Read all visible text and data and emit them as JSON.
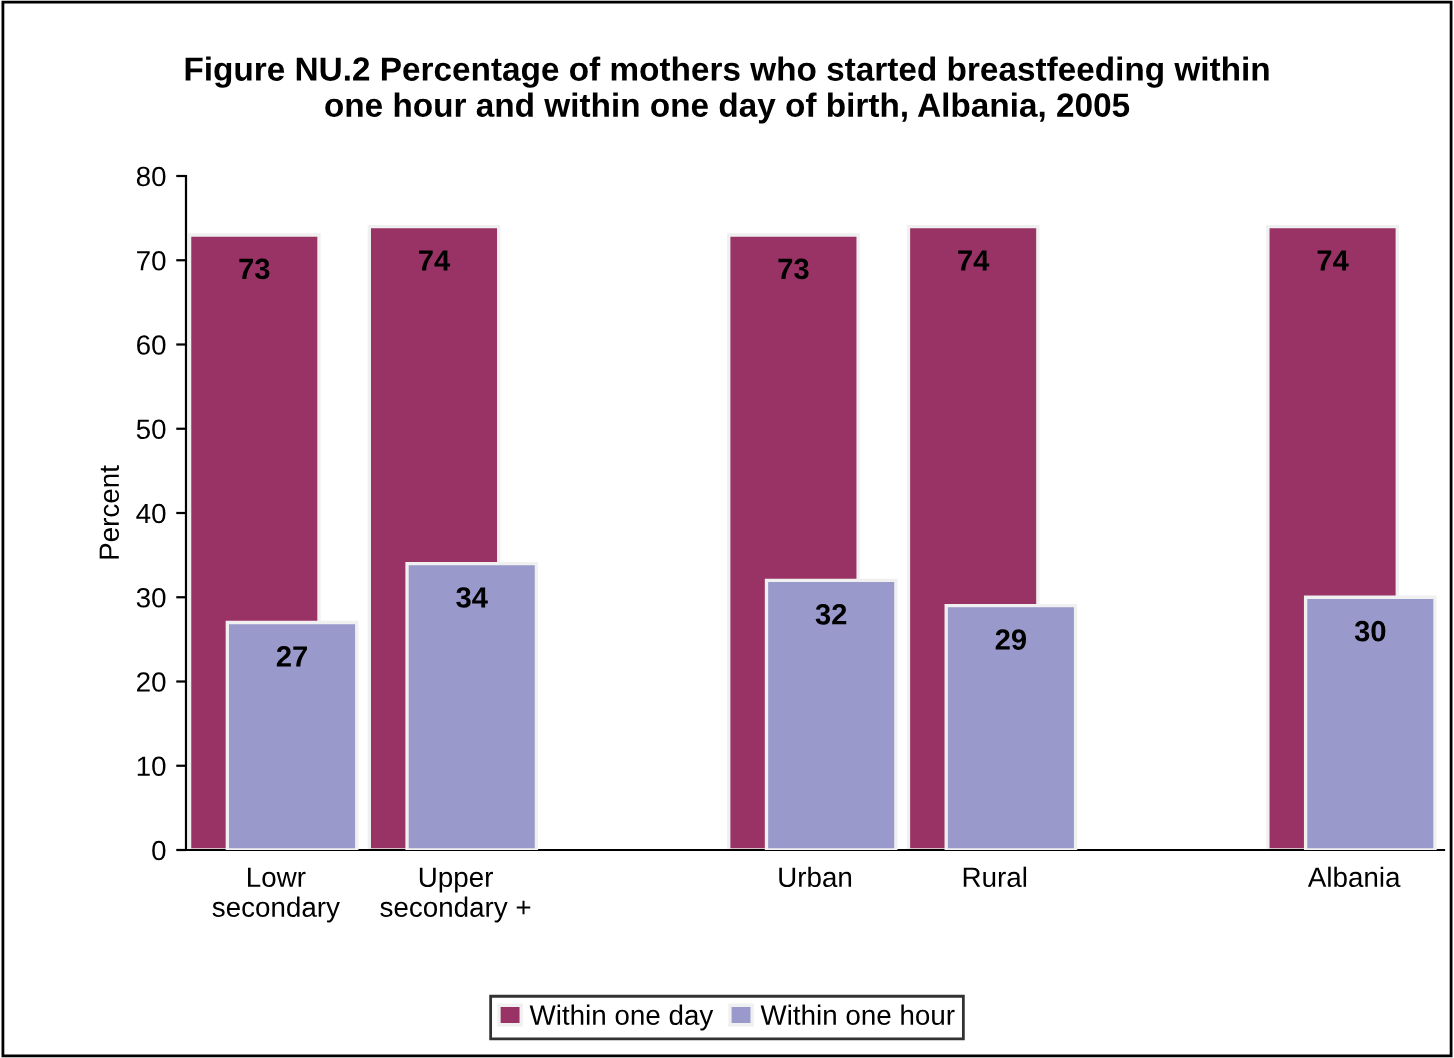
{
  "chart_data": {
    "type": "bar",
    "title": "Figure NU.2 Percentage of mothers who started breastfeeding within\none hour and within one day of birth, Albania, 2005",
    "ylabel": "Percent",
    "categories": [
      "Lowr\nsecondary",
      "Upper\nsecondary +",
      null,
      "Urban",
      "Rural",
      null,
      "Albania"
    ],
    "series": [
      {
        "name": "Within one day",
        "color": "#993366",
        "values": [
          73,
          74,
          null,
          73,
          74,
          null,
          74
        ]
      },
      {
        "name": "Within one hour",
        "color": "#9999cc",
        "values": [
          27,
          34,
          null,
          32,
          29,
          null,
          30
        ]
      }
    ],
    "ylim": [
      0,
      80
    ],
    "yticks": [
      0,
      10,
      20,
      30,
      40,
      50,
      60,
      70,
      80
    ],
    "grid": false,
    "legend": "bottom",
    "data_labels": true
  }
}
